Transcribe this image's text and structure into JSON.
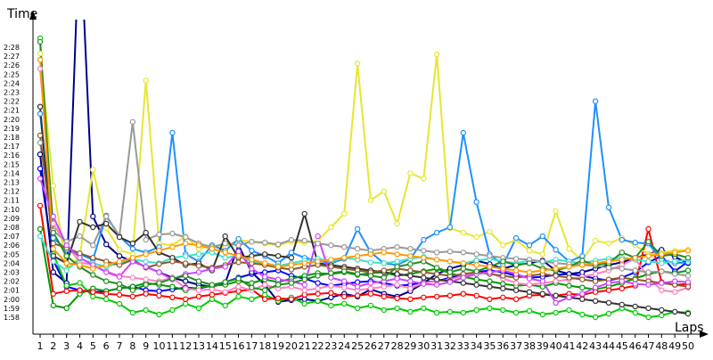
{
  "chart_data": {
    "type": "line",
    "title": "",
    "ylabel": "Time",
    "xlabel": "Laps",
    "grid": false,
    "legend": "none",
    "x": [
      1,
      2,
      3,
      4,
      5,
      6,
      7,
      8,
      9,
      10,
      11,
      12,
      13,
      14,
      15,
      16,
      17,
      18,
      19,
      20,
      21,
      22,
      23,
      24,
      25,
      26,
      27,
      28,
      29,
      30,
      31,
      32,
      33,
      34,
      35,
      36,
      37,
      38,
      39,
      40,
      41,
      42,
      43,
      44,
      45,
      46,
      47,
      48,
      49,
      50
    ],
    "xlim": [
      1,
      50
    ],
    "y_ticks": [
      "1:58",
      "1:59",
      "2:00",
      "2:01",
      "2:02",
      "2:03",
      "2:04",
      "2:05",
      "2:06",
      "2:07",
      "2:08",
      "2:09",
      "2:10",
      "2:11",
      "2:12",
      "2:13",
      "2:14",
      "2:15",
      "2:16",
      "2:17",
      "2:18",
      "2:19",
      "2:20",
      "2:21",
      "2:22",
      "2:23",
      "2:24",
      "2:25",
      "2:26",
      "2:27",
      "2:28"
    ],
    "ylim_seconds": [
      117.5,
      150.0
    ],
    "series": [
      {
        "color": "#0000ff",
        "values": [
          134.5,
          124.3,
          121.4,
          121.0,
          120.8,
          120.9,
          121.2,
          121.4,
          121.0,
          120.9,
          121.1,
          121.3,
          121.2,
          121.5,
          121.9,
          122.4,
          122.8,
          123.0,
          123.2,
          122.6,
          122.3,
          121.8,
          121.5,
          121.7,
          121.9,
          122.0,
          121.8,
          121.5,
          121.6,
          121.9,
          122.0,
          122.4,
          122.7,
          123.0,
          123.2,
          123.0,
          122.6,
          122.4,
          122.5,
          122.7,
          122.8,
          122.6,
          122.3,
          122.1,
          122.4,
          123.0,
          124.1,
          124.8,
          123.1,
          124.2
        ]
      },
      {
        "color": "#00008b",
        "values": [
          136.1,
          123.0,
          121.8,
          162.0,
          129.2,
          126.1,
          124.8,
          124.2,
          123.6,
          123.0,
          122.4,
          122.0,
          121.6,
          121.4,
          121.8,
          126.0,
          123.0,
          121.6,
          119.7,
          119.9,
          120.0,
          119.8,
          120.2,
          120.6,
          120.3,
          121.1,
          120.6,
          120.3,
          120.9,
          121.8,
          122.8,
          123.4,
          123.8,
          124.3,
          123.9,
          123.4,
          123.8,
          124.0,
          124.3,
          123.2,
          122.8,
          123.0,
          123.4,
          123.8,
          124.1,
          124.6,
          125.0,
          125.5,
          124.7,
          124.0
        ]
      },
      {
        "color": "#00cc00",
        "values": [
          149.0,
          125.0,
          121.5,
          121.8,
          120.3,
          120.0,
          119.5,
          118.5,
          118.8,
          118.3,
          118.8,
          119.5,
          119.0,
          120.0,
          119.3,
          120.3,
          120.0,
          120.5,
          119.8,
          120.2,
          119.5,
          119.8,
          119.3,
          119.5,
          119.0,
          119.3,
          118.8,
          119.0,
          118.6,
          119.0,
          118.5,
          118.6,
          118.5,
          118.8,
          119.0,
          118.8,
          118.5,
          118.7,
          118.3,
          118.5,
          118.8,
          118.3,
          118.0,
          118.4,
          119.0,
          118.5,
          118.0,
          118.2,
          118.6,
          118.5
        ]
      },
      {
        "color": "#009900",
        "values": [
          127.8,
          119.3,
          119.0,
          120.6,
          121.2,
          120.9,
          121.2,
          121.4,
          121.8,
          121.6,
          121.4,
          121.0,
          121.3,
          121.5,
          121.6,
          122.0,
          121.8,
          122.2,
          121.9,
          122.3,
          122.6,
          122.9,
          122.8,
          123.0,
          122.7,
          122.9,
          123.0,
          122.6,
          122.8,
          123.1,
          123.4,
          122.9,
          122.5,
          122.2,
          122.0,
          121.7,
          121.5,
          121.6,
          121.4,
          121.8,
          121.5,
          121.3,
          121.1,
          121.4,
          121.8,
          122.3,
          122.8,
          123.1,
          122.9,
          123.2
        ]
      },
      {
        "color": "#ff0000",
        "values": [
          130.4,
          120.6,
          120.9,
          121.0,
          120.8,
          120.6,
          120.5,
          120.3,
          120.6,
          120.4,
          120.2,
          120.0,
          120.3,
          120.5,
          120.7,
          120.9,
          121.1,
          120.0,
          120.1,
          120.0,
          120.5,
          120.6,
          120.7,
          120.3,
          120.4,
          120.6,
          120.3,
          120.1,
          120.0,
          120.2,
          120.3,
          120.4,
          120.6,
          120.4,
          120.0,
          120.2,
          120.0,
          120.4,
          120.5,
          120.4,
          120.6,
          120.5,
          120.8,
          121.0,
          121.2,
          121.5,
          127.8,
          121.9,
          121.6,
          121.7
        ]
      },
      {
        "color": "#ff80c0",
        "values": [
          145.6,
          128.4,
          126.0,
          124.1,
          123.8,
          123.1,
          122.6,
          122.4,
          122.2,
          122.0,
          122.4,
          121.2,
          121.0,
          121.1,
          120.8,
          121.4,
          121.0,
          121.6,
          121.2,
          121.4,
          121.0,
          121.2,
          121.5,
          121.3,
          121.0,
          121.2,
          121.4,
          121.6,
          121.2,
          121.8,
          122.0,
          122.2,
          122.6,
          122.8,
          123.0,
          122.3,
          121.8,
          121.6,
          121.8,
          122.0,
          122.2,
          122.5,
          122.8,
          123.2,
          123.8,
          124.5,
          122.4,
          121.0,
          120.8,
          121.3
        ]
      },
      {
        "color": "#e6e632",
        "values": [
          147.3,
          132.6,
          123.3,
          124.8,
          134.4,
          127.9,
          125.5,
          125.0,
          144.3,
          126.2,
          126.0,
          127.0,
          125.6,
          126.0,
          125.8,
          126.6,
          126.4,
          126.2,
          126.0,
          126.4,
          126.3,
          126.5,
          128.0,
          129.5,
          146.2,
          131.0,
          132.0,
          128.4,
          134.0,
          133.4,
          147.2,
          127.9,
          127.4,
          126.9,
          127.5,
          126.0,
          126.6,
          125.4,
          125.0,
          129.8,
          125.6,
          124.3,
          126.5,
          126.2,
          126.8,
          126.0,
          125.0,
          125.2,
          125.4,
          125.5
        ]
      },
      {
        "color": "#1e90ff",
        "values": [
          140.6,
          126.8,
          125.5,
          125.0,
          124.4,
          129.3,
          127.0,
          125.6,
          125.2,
          125.8,
          138.5,
          125.0,
          124.2,
          126.0,
          125.4,
          126.7,
          125.4,
          124.8,
          124.0,
          125.2,
          124.6,
          124.3,
          124.0,
          124.5,
          127.8,
          125.2,
          124.0,
          123.8,
          124.5,
          126.6,
          127.4,
          128.0,
          138.5,
          130.8,
          125.0,
          123.8,
          126.8,
          126.0,
          127.0,
          125.5,
          124.2,
          124.8,
          142.0,
          130.2,
          126.6,
          126.3,
          126.2,
          124.4,
          124.0,
          124.1
        ]
      },
      {
        "color": "#40e0d0",
        "values": [
          127.0,
          124.2,
          123.2,
          124.5,
          124.0,
          123.6,
          124.0,
          124.4,
          124.2,
          124.0,
          124.6,
          124.8,
          125.0,
          125.2,
          124.6,
          124.8,
          124.2,
          124.0,
          123.7,
          124.0,
          124.3,
          124.5,
          124.2,
          124.6,
          124.4,
          124.1,
          124.0,
          124.2,
          124.5,
          124.7,
          124.4,
          124.2,
          124.0,
          124.3,
          124.5,
          124.2,
          124.0,
          124.3,
          124.1,
          124.4,
          124.2,
          124.0,
          124.3,
          124.5,
          124.6,
          124.4,
          124.2,
          124.0,
          124.2,
          124.4
        ]
      },
      {
        "color": "#999999",
        "values": [
          137.4,
          127.6,
          126.4,
          127.0,
          126.0,
          129.2,
          127.0,
          139.7,
          126.6,
          127.2,
          127.3,
          126.9,
          126.2,
          125.8,
          126.2,
          126.0,
          126.4,
          126.3,
          126.1,
          126.6,
          126.5,
          126.2,
          126.0,
          125.8,
          125.6,
          125.4,
          125.6,
          125.8,
          125.6,
          125.4,
          125.2,
          125.3,
          125.2,
          125.0,
          124.8,
          124.6,
          124.5,
          124.4,
          124.2,
          124.0,
          123.9,
          123.8,
          123.7,
          123.5,
          123.4,
          123.2,
          123.0,
          123.1,
          122.8,
          122.6
        ]
      },
      {
        "color": "#333333",
        "values": [
          141.4,
          124.8,
          124.0,
          128.6,
          128.0,
          128.4,
          126.9,
          126.2,
          127.4,
          125.2,
          124.6,
          123.8,
          124.0,
          123.2,
          127.0,
          124.6,
          124.8,
          125.0,
          124.8,
          124.6,
          129.5,
          124.0,
          123.8,
          123.6,
          123.4,
          123.2,
          123.0,
          122.8,
          122.6,
          122.4,
          122.2,
          122.0,
          121.8,
          121.6,
          121.4,
          121.2,
          121.0,
          120.8,
          120.6,
          120.4,
          120.2,
          120.0,
          119.8,
          119.6,
          119.4,
          119.2,
          119.0,
          118.8,
          118.6,
          118.4
        ]
      },
      {
        "color": "#8b5a2b",
        "values": [
          138.2,
          126.2,
          125.7,
          125.1,
          124.6,
          124.2,
          123.8,
          124.4,
          123.5,
          123.9,
          124.2,
          124.0,
          123.7,
          123.5,
          123.8,
          124.1,
          124.0,
          123.8,
          123.5,
          123.3,
          123.6,
          123.8,
          123.6,
          123.4,
          123.2,
          123.0,
          123.2,
          123.4,
          123.2,
          123.0,
          122.8,
          122.6,
          122.8,
          123.0,
          122.8,
          122.6,
          122.4,
          122.6,
          122.8,
          122.6,
          122.4,
          122.2,
          122.0,
          122.2,
          122.4,
          122.2,
          122.0,
          121.8,
          121.6,
          121.4
        ]
      },
      {
        "color": "#cc44ff",
        "values": [
          133.4,
          129.2,
          126.0,
          124.6,
          123.8,
          123.0,
          122.5,
          124.2,
          123.6,
          123.0,
          122.2,
          122.8,
          123.0,
          123.4,
          123.6,
          125.3,
          123.4,
          122.5,
          122.2,
          122.0,
          121.6,
          127.0,
          122.4,
          122.0,
          121.4,
          121.8,
          122.0,
          122.3,
          122.0,
          121.7,
          121.6,
          121.9,
          122.4,
          122.8,
          123.0,
          123.2,
          122.8,
          122.3,
          122.0,
          119.6,
          120.2,
          120.6,
          121.3,
          121.8,
          122.0,
          121.7,
          121.6,
          121.8,
          122.0,
          121.9
        ]
      },
      {
        "color": "#228b22",
        "values": [
          148.6,
          127.4,
          124.8,
          123.6,
          122.7,
          122.0,
          121.7,
          121.0,
          121.6,
          121.8,
          122.3,
          122.6,
          122.0,
          121.6,
          121.9,
          122.3,
          121.3,
          121.0,
          121.6,
          121.8,
          122.2,
          122.6,
          122.9,
          123.1,
          122.8,
          122.6,
          122.4,
          123.6,
          123.9,
          124.2,
          123.5,
          123.0,
          123.4,
          123.1,
          123.6,
          124.2,
          123.8,
          124.0,
          123.4,
          123.2,
          123.6,
          124.3,
          123.8,
          124.0,
          125.2,
          124.6,
          126.4,
          124.8,
          125.0,
          124.6
        ]
      },
      {
        "color": "#ff9900",
        "values": [
          146.6,
          125.6,
          124.0,
          123.8,
          123.4,
          123.8,
          124.2,
          124.6,
          125.0,
          125.4,
          125.8,
          126.2,
          126.0,
          125.6,
          125.2,
          124.8,
          124.4,
          124.0,
          123.6,
          123.8,
          124.0,
          124.2,
          124.4,
          124.6,
          124.8,
          125.0,
          125.2,
          125.0,
          124.8,
          124.6,
          124.4,
          124.2,
          124.0,
          123.8,
          123.6,
          123.4,
          123.2,
          123.0,
          123.2,
          123.4,
          123.6,
          123.8,
          124.0,
          124.2,
          124.4,
          124.6,
          124.8,
          125.0,
          125.2,
          125.4
        ]
      }
    ]
  }
}
